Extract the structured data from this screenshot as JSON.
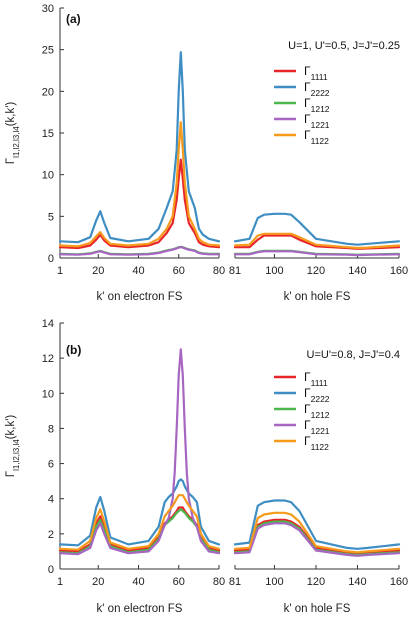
{
  "chart_data": [
    {
      "type": "line",
      "panel_label": "(a)",
      "params": "U=1, U'=0.5, J=J'=0.25",
      "ylabel_main": "Γ",
      "ylabel_sub": "l1,l2,l3,l4",
      "ylabel_tail": "(k,k')",
      "ylim": [
        0,
        30
      ],
      "yticks": [
        0,
        5,
        10,
        15,
        20,
        25,
        30
      ],
      "subplots": [
        {
          "xlabel": "k' on electron FS",
          "xlim": [
            1,
            80
          ],
          "xticks": [
            1,
            20,
            40,
            60,
            80
          ],
          "xtick_labels": [
            "1",
            "20",
            "40",
            "60",
            "80"
          ]
        },
        {
          "xlabel": "k' on hole FS",
          "xlim": [
            81,
            160
          ],
          "xticks": [
            81,
            100,
            120,
            140,
            160
          ],
          "xtick_labels": [
            "81",
            "100",
            "120",
            "140",
            "160"
          ]
        }
      ],
      "legend_position": "top-right",
      "series": [
        {
          "name_main": "Γ",
          "name_sub": "1111",
          "color": "#e8262a",
          "electron": {
            "x": [
              1,
              10,
              16,
              19,
              21,
              23,
              26,
              35,
              45,
              50,
              54,
              57,
              59,
              60,
              61,
              62,
              63,
              65,
              68,
              70,
              72,
              75,
              80
            ],
            "y": [
              1.3,
              1.2,
              1.5,
              2.2,
              2.8,
              2.1,
              1.5,
              1.3,
              1.5,
              1.9,
              3.0,
              4.2,
              7.0,
              9.5,
              11.8,
              9.5,
              7.0,
              4.2,
              3.0,
              1.9,
              1.6,
              1.4,
              1.3
            ]
          },
          "hole": {
            "x": [
              81,
              88,
              92,
              95,
              100,
              105,
              108,
              112,
              120,
              135,
              140,
              145,
              160
            ],
            "y": [
              1.3,
              1.3,
              2.2,
              2.7,
              2.7,
              2.7,
              2.7,
              2.2,
              1.4,
              1.2,
              1.1,
              1.15,
              1.3
            ]
          }
        },
        {
          "name_main": "Γ",
          "name_sub": "2222",
          "color": "#3e8ec4",
          "electron": {
            "x": [
              1,
              10,
              16,
              19,
              21,
              23,
              26,
              35,
              45,
              50,
              54,
              57,
              59,
              60,
              61,
              62,
              63,
              65,
              68,
              70,
              72,
              75,
              80
            ],
            "y": [
              2.0,
              1.9,
              2.5,
              4.5,
              5.6,
              4.2,
              2.4,
              2.0,
              2.3,
              3.5,
              6.0,
              8.0,
              13.0,
              20.0,
              24.7,
              20.0,
              13.0,
              8.0,
              6.0,
              3.5,
              2.8,
              2.3,
              2.0
            ]
          },
          "hole": {
            "x": [
              81,
              88,
              92,
              95,
              100,
              105,
              108,
              112,
              120,
              135,
              140,
              145,
              160
            ],
            "y": [
              2.0,
              2.3,
              4.8,
              5.2,
              5.3,
              5.3,
              5.2,
              4.3,
              2.3,
              1.7,
              1.6,
              1.7,
              2.0
            ]
          }
        },
        {
          "name_main": "Γ",
          "name_sub": "1212",
          "color": "#4cb84c",
          "electron": {
            "x": [
              1,
              10,
              16,
              19,
              21,
              23,
              26,
              35,
              45,
              50,
              54,
              57,
              59,
              60,
              61,
              62,
              63,
              65,
              68,
              70,
              72,
              75,
              80
            ],
            "y": [
              0.5,
              0.45,
              0.55,
              0.75,
              0.85,
              0.7,
              0.5,
              0.45,
              0.5,
              0.65,
              0.9,
              1.05,
              1.2,
              1.3,
              1.35,
              1.3,
              1.2,
              1.05,
              0.9,
              0.65,
              0.55,
              0.5,
              0.5
            ]
          },
          "hole": {
            "x": [
              81,
              88,
              92,
              95,
              100,
              105,
              108,
              112,
              120,
              135,
              140,
              145,
              160
            ],
            "y": [
              0.5,
              0.5,
              0.75,
              0.85,
              0.85,
              0.85,
              0.85,
              0.75,
              0.5,
              0.45,
              0.4,
              0.42,
              0.5
            ]
          }
        },
        {
          "name_main": "Γ",
          "name_sub": "1221",
          "color": "#a666c2",
          "electron": {
            "x": [
              1,
              10,
              16,
              19,
              21,
              23,
              26,
              35,
              45,
              50,
              54,
              57,
              59,
              60,
              61,
              62,
              63,
              65,
              68,
              70,
              72,
              75,
              80
            ],
            "y": [
              0.45,
              0.4,
              0.5,
              0.7,
              0.8,
              0.65,
              0.45,
              0.4,
              0.45,
              0.6,
              0.85,
              1.0,
              1.15,
              1.25,
              1.3,
              1.25,
              1.15,
              1.0,
              0.85,
              0.6,
              0.5,
              0.45,
              0.45
            ]
          },
          "hole": {
            "x": [
              81,
              88,
              92,
              95,
              100,
              105,
              108,
              112,
              120,
              135,
              140,
              145,
              160
            ],
            "y": [
              0.45,
              0.45,
              0.7,
              0.8,
              0.8,
              0.8,
              0.8,
              0.7,
              0.45,
              0.4,
              0.35,
              0.38,
              0.45
            ]
          }
        },
        {
          "name_main": "Γ",
          "name_sub": "1122",
          "color": "#f59a1c",
          "electron": {
            "x": [
              1,
              10,
              16,
              19,
              21,
              23,
              26,
              35,
              45,
              50,
              54,
              57,
              59,
              60,
              61,
              62,
              63,
              65,
              68,
              70,
              72,
              75,
              80
            ],
            "y": [
              1.5,
              1.4,
              1.8,
              2.6,
              3.1,
              2.4,
              1.7,
              1.5,
              1.7,
              2.3,
              3.5,
              5.0,
              9.0,
              13.0,
              16.3,
              13.0,
              9.0,
              5.0,
              3.5,
              2.3,
              1.9,
              1.6,
              1.5
            ]
          },
          "hole": {
            "x": [
              81,
              88,
              92,
              95,
              100,
              105,
              108,
              112,
              120,
              135,
              140,
              145,
              160
            ],
            "y": [
              1.5,
              1.6,
              2.7,
              2.9,
              2.9,
              2.9,
              2.9,
              2.5,
              1.6,
              1.3,
              1.2,
              1.25,
              1.5
            ]
          }
        }
      ]
    },
    {
      "type": "line",
      "panel_label": "(b)",
      "params": "U=U'=0.8, J=J'=0.4",
      "ylabel_main": "Γ",
      "ylabel_sub": "l1,l2,l3,l4",
      "ylabel_tail": "(k,k')",
      "ylim": [
        0,
        14
      ],
      "yticks": [
        0,
        2,
        4,
        6,
        8,
        10,
        12,
        14
      ],
      "subplots": [
        {
          "xlabel": "k' on electron FS",
          "xlim": [
            1,
            80
          ],
          "xticks": [
            1,
            20,
            40,
            60,
            80
          ],
          "xtick_labels": [
            "1",
            "20",
            "40",
            "60",
            "80"
          ]
        },
        {
          "xlabel": "k' on hole FS",
          "xlim": [
            81,
            160
          ],
          "xticks": [
            81,
            100,
            120,
            140,
            160
          ],
          "xtick_labels": [
            "81",
            "100",
            "120",
            "140",
            "160"
          ]
        }
      ],
      "legend_position": "top-right",
      "series": [
        {
          "name_main": "Γ",
          "name_sub": "1111",
          "color": "#e8262a",
          "electron": {
            "x": [
              1,
              10,
              16,
              19,
              21,
              23,
              26,
              35,
              45,
              50,
              53,
              55,
              57,
              59,
              60,
              61,
              62,
              63,
              65,
              67,
              69,
              71,
              75,
              80
            ],
            "y": [
              1.05,
              1.0,
              1.4,
              2.6,
              3.0,
              2.4,
              1.4,
              1.05,
              1.2,
              1.8,
              2.6,
              2.8,
              3.0,
              3.3,
              3.5,
              3.5,
              3.5,
              3.3,
              3.0,
              2.8,
              2.5,
              1.8,
              1.2,
              1.05
            ]
          },
          "hole": {
            "x": [
              81,
              88,
              92,
              95,
              100,
              105,
              108,
              112,
              120,
              135,
              140,
              145,
              160
            ],
            "y": [
              1.05,
              1.1,
              2.5,
              2.7,
              2.8,
              2.8,
              2.7,
              2.4,
              1.2,
              0.9,
              0.85,
              0.9,
              1.05
            ]
          }
        },
        {
          "name_main": "Γ",
          "name_sub": "2222",
          "color": "#3e8ec4",
          "electron": {
            "x": [
              1,
              10,
              16,
              19,
              21,
              23,
              26,
              35,
              45,
              50,
              53,
              55,
              57,
              59,
              60,
              61,
              62,
              63,
              65,
              67,
              69,
              71,
              75,
              80
            ],
            "y": [
              1.4,
              1.35,
              1.9,
              3.5,
              4.1,
              3.3,
              1.8,
              1.4,
              1.6,
              2.4,
              3.8,
              4.1,
              4.3,
              4.7,
              5.0,
              5.1,
              5.0,
              4.7,
              4.3,
              4.1,
              3.8,
              2.4,
              1.6,
              1.4
            ]
          },
          "hole": {
            "x": [
              81,
              88,
              92,
              95,
              100,
              105,
              108,
              112,
              120,
              135,
              140,
              145,
              160
            ],
            "y": [
              1.4,
              1.5,
              3.6,
              3.8,
              3.9,
              3.9,
              3.8,
              3.3,
              1.6,
              1.2,
              1.15,
              1.2,
              1.4
            ]
          }
        },
        {
          "name_main": "Γ",
          "name_sub": "1212",
          "color": "#4cb84c",
          "electron": {
            "x": [
              1,
              10,
              16,
              19,
              21,
              23,
              26,
              35,
              45,
              50,
              53,
              55,
              57,
              59,
              60,
              61,
              62,
              63,
              65,
              67,
              69,
              71,
              75,
              80
            ],
            "y": [
              0.95,
              0.9,
              1.3,
              2.4,
              2.8,
              2.2,
              1.3,
              0.95,
              1.1,
              1.7,
              2.5,
              2.7,
              2.9,
              3.2,
              3.3,
              3.4,
              3.3,
              3.2,
              2.9,
              2.7,
              2.4,
              1.7,
              1.1,
              0.95
            ]
          },
          "hole": {
            "x": [
              81,
              88,
              92,
              95,
              100,
              105,
              108,
              112,
              120,
              135,
              140,
              145,
              160
            ],
            "y": [
              0.95,
              1.0,
              2.4,
              2.6,
              2.7,
              2.7,
              2.6,
              2.3,
              1.1,
              0.85,
              0.8,
              0.85,
              0.95
            ]
          }
        },
        {
          "name_main": "Γ",
          "name_sub": "1221",
          "color": "#a666c2",
          "electron": {
            "x": [
              1,
              10,
              16,
              19,
              21,
              23,
              26,
              35,
              45,
              50,
              53,
              55,
              57,
              58,
              59,
              60,
              61,
              62,
              63,
              64,
              65,
              67,
              69,
              71,
              75,
              80
            ],
            "y": [
              0.9,
              0.85,
              1.2,
              2.2,
              2.6,
              2.0,
              1.2,
              0.9,
              1.0,
              1.6,
              2.5,
              2.9,
              4.0,
              5.5,
              8.0,
              11.0,
              12.5,
              11.0,
              8.0,
              5.5,
              4.0,
              2.9,
              2.4,
              1.6,
              1.0,
              0.9
            ]
          },
          "hole": {
            "x": [
              81,
              88,
              92,
              95,
              100,
              105,
              108,
              112,
              120,
              135,
              140,
              145,
              160
            ],
            "y": [
              0.9,
              0.95,
              2.3,
              2.5,
              2.6,
              2.6,
              2.5,
              2.2,
              1.05,
              0.8,
              0.75,
              0.8,
              0.9
            ]
          }
        },
        {
          "name_main": "Γ",
          "name_sub": "1122",
          "color": "#f59a1c",
          "electron": {
            "x": [
              1,
              10,
              16,
              19,
              21,
              23,
              26,
              35,
              45,
              50,
              53,
              55,
              57,
              59,
              60,
              61,
              62,
              63,
              65,
              67,
              69,
              71,
              75,
              80
            ],
            "y": [
              1.15,
              1.1,
              1.6,
              2.9,
              3.4,
              2.7,
              1.5,
              1.15,
              1.3,
              2.0,
              3.0,
              3.3,
              3.6,
              4.0,
              4.2,
              4.2,
              4.2,
              4.0,
              3.6,
              3.3,
              3.0,
              2.0,
              1.3,
              1.15
            ]
          },
          "hole": {
            "x": [
              81,
              88,
              92,
              95,
              100,
              105,
              108,
              112,
              120,
              135,
              140,
              145,
              160
            ],
            "y": [
              1.15,
              1.2,
              2.9,
              3.1,
              3.2,
              3.2,
              3.1,
              2.7,
              1.3,
              1.0,
              0.95,
              1.0,
              1.15
            ]
          }
        }
      ]
    }
  ]
}
